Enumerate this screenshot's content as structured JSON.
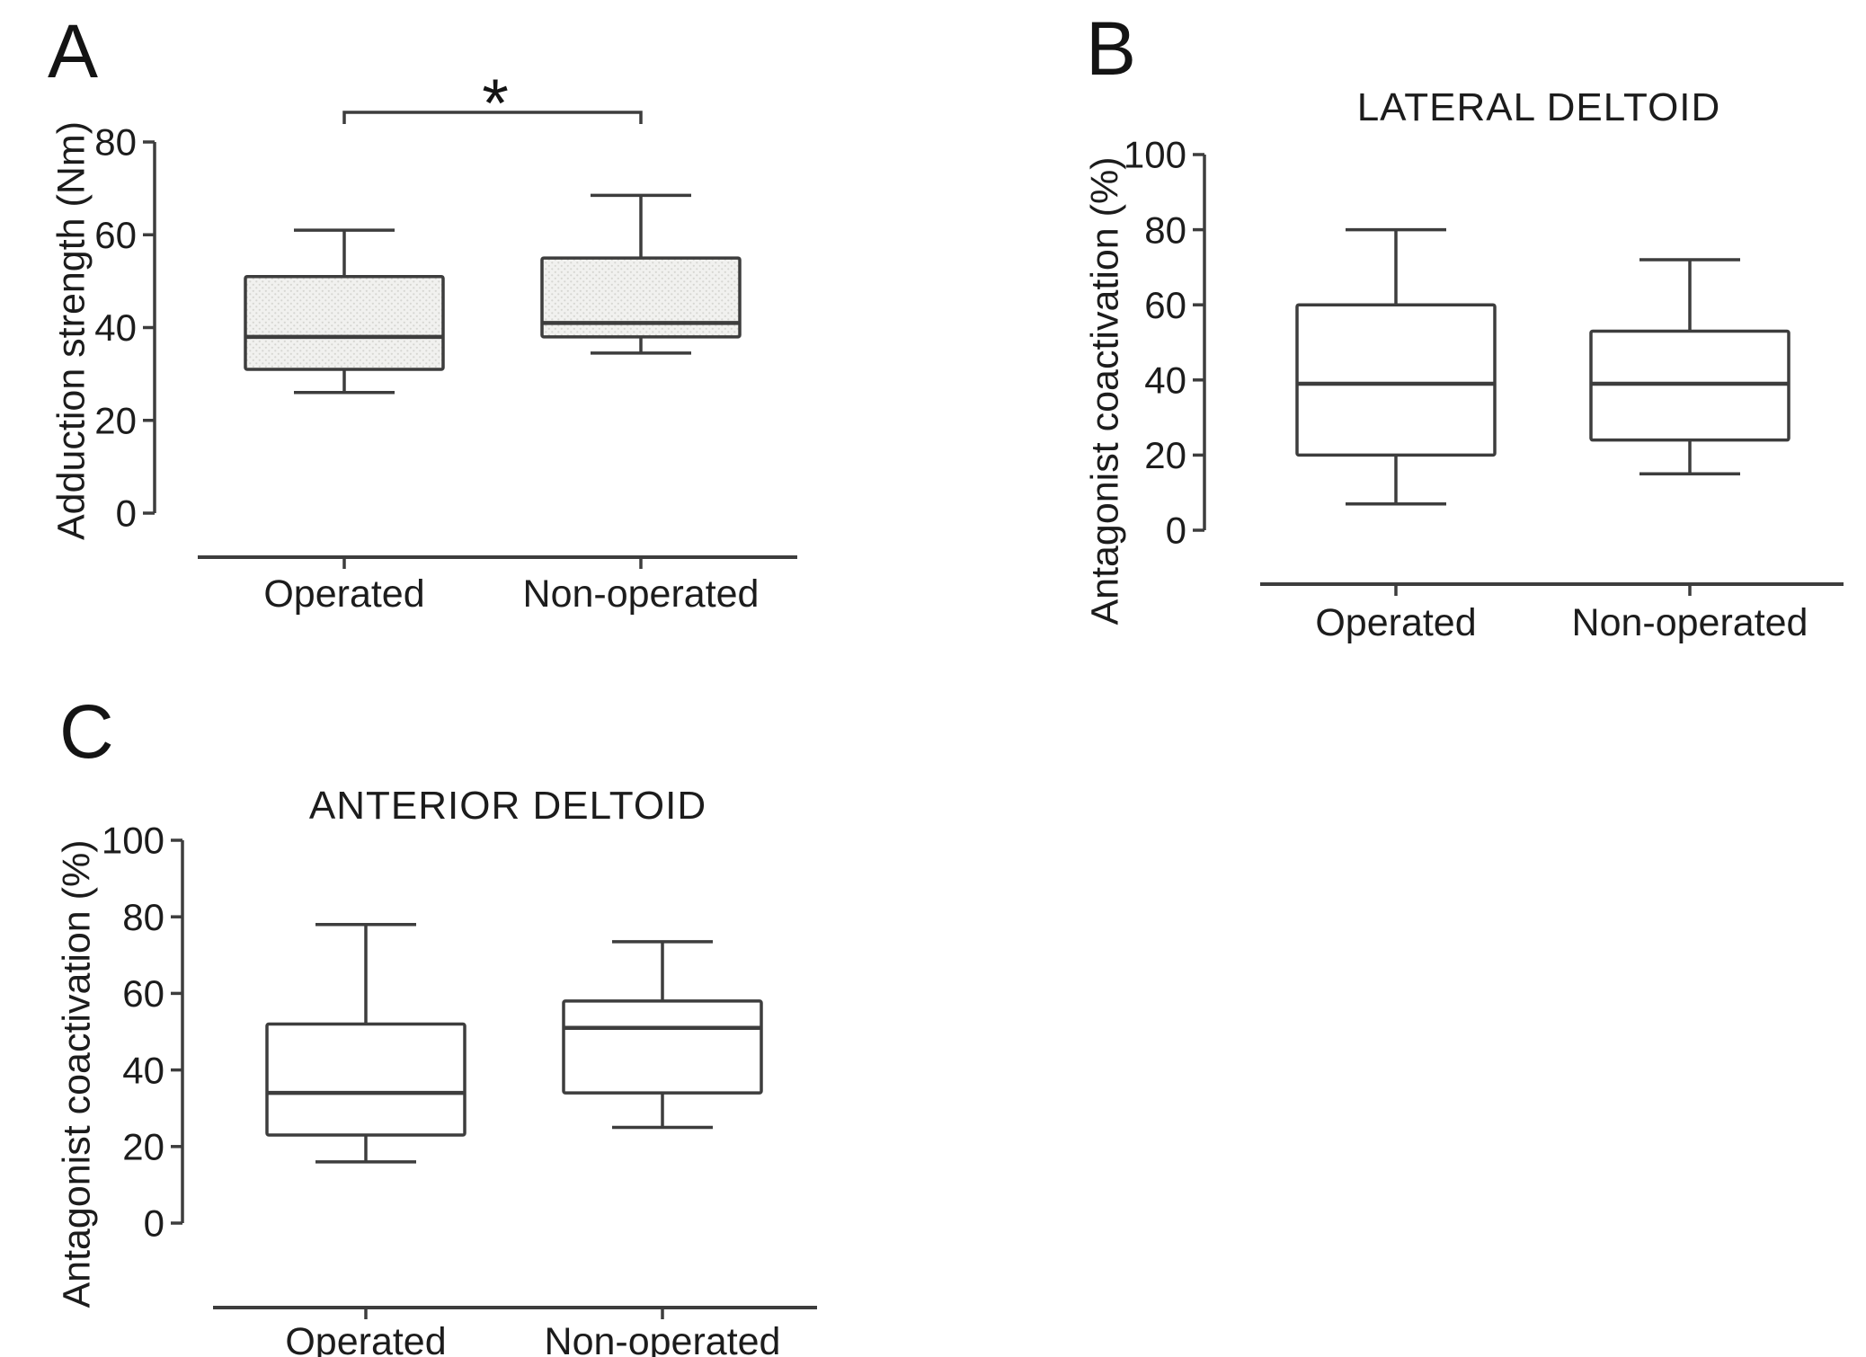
{
  "colors": {
    "line": "#3d3d3d",
    "text": "#1c1c1c",
    "hatch_background": "#f1f1ef",
    "hatch_dot": "#d6d6d2",
    "plain_box_fill": "#ffffff"
  },
  "chart_data": [
    {
      "type": "box",
      "panel_label": "A",
      "title": "",
      "ylabel": "Adduction strength (Nm)",
      "ylim": [
        0,
        80
      ],
      "yticks": [
        0,
        20,
        40,
        60,
        80
      ],
      "grid": false,
      "categories": [
        "Operated",
        "Non-operated"
      ],
      "box_style": "hatched",
      "series": [
        {
          "category": "Operated",
          "min": 26,
          "q1": 31,
          "median": 38,
          "q3": 51,
          "max": 61
        },
        {
          "category": "Non-operated",
          "min": 34.5,
          "q1": 38,
          "median": 41,
          "q3": 55,
          "max": 68.5
        }
      ],
      "significance": {
        "label": "*",
        "between": [
          "Operated",
          "Non-operated"
        ]
      }
    },
    {
      "type": "box",
      "panel_label": "B",
      "title": "LATERAL DELTOID",
      "ylabel": "Antagonist coactivation (%)",
      "ylim": [
        0,
        100
      ],
      "yticks": [
        0,
        20,
        40,
        60,
        80,
        100
      ],
      "grid": false,
      "categories": [
        "Operated",
        "Non-operated"
      ],
      "box_style": "plain",
      "series": [
        {
          "category": "Operated",
          "min": 7,
          "q1": 20,
          "median": 39,
          "q3": 60,
          "max": 80
        },
        {
          "category": "Non-operated",
          "min": 15,
          "q1": 24,
          "median": 39,
          "q3": 53,
          "max": 72
        }
      ]
    },
    {
      "type": "box",
      "panel_label": "C",
      "title": "ANTERIOR DELTOID",
      "ylabel": "Antagonist coactivation (%)",
      "ylim": [
        0,
        100
      ],
      "yticks": [
        0,
        20,
        40,
        60,
        80,
        100
      ],
      "grid": false,
      "categories": [
        "Operated",
        "Non-operated"
      ],
      "box_style": "plain",
      "series": [
        {
          "category": "Operated",
          "min": 16,
          "q1": 23,
          "median": 34,
          "q3": 52,
          "max": 78
        },
        {
          "category": "Non-operated",
          "min": 25,
          "q1": 34,
          "median": 51,
          "q3": 58,
          "max": 73.5
        }
      ]
    }
  ]
}
